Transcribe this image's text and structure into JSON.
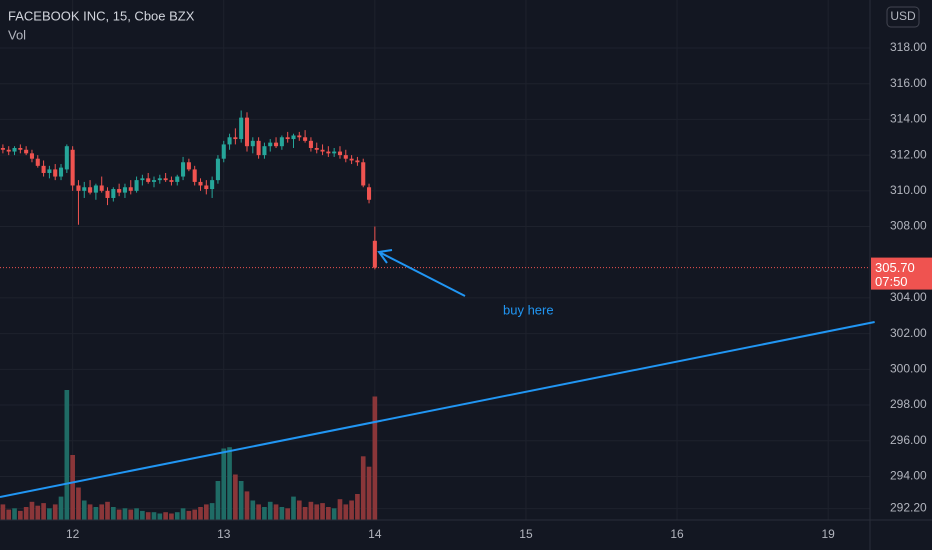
{
  "chart_data": {
    "type": "candlestick",
    "title": "FACEBOOK INC, 15, Cboe BZX",
    "subtitle": "Vol",
    "currency": "USD",
    "annotation": "buy here",
    "countdown": "07:50",
    "last_price": {
      "value": 305.7,
      "label": "305.70"
    },
    "up_color": "#26a69a",
    "down_color": "#ef5350",
    "volume_up_color": "#1f6b65",
    "volume_down_color": "#8a3639",
    "trendline": {
      "color": "#2196f3",
      "x": [
        -12.5,
        138
      ],
      "y": [
        292.85,
        302.65
      ]
    },
    "grid": true,
    "xlim": [
      -12.5,
      137.2
    ],
    "xticks": [
      {
        "value": 0,
        "label": "12"
      },
      {
        "value": 26,
        "label": "13"
      },
      {
        "value": 52,
        "label": "14"
      },
      {
        "value": 78,
        "label": "15"
      },
      {
        "value": 104,
        "label": "16"
      },
      {
        "value": 130,
        "label": "19"
      }
    ],
    "ylim": [
      291.56,
      320.69
    ],
    "yticks": [
      {
        "value": 292.2,
        "label": "292.20"
      },
      {
        "value": 294,
        "label": "294.00"
      },
      {
        "value": 296,
        "label": "296.00"
      },
      {
        "value": 298,
        "label": "298.00"
      },
      {
        "value": 300,
        "label": "300.00"
      },
      {
        "value": 302,
        "label": "302.00"
      },
      {
        "value": 304,
        "label": "304.00"
      },
      {
        "value": 308,
        "label": "308.00"
      },
      {
        "value": 310,
        "label": "310.00"
      },
      {
        "value": 312,
        "label": "312.00"
      },
      {
        "value": 314,
        "label": "314.00"
      },
      {
        "value": 316,
        "label": "316.00"
      },
      {
        "value": 318,
        "label": "318.00"
      }
    ],
    "volume_ylim": [
      0,
      400
    ],
    "x": [
      -12,
      -11,
      -10,
      -9,
      -8,
      -7,
      -6,
      -5,
      -4,
      -3,
      -2,
      -1,
      0,
      1,
      2,
      3,
      4,
      5,
      6,
      7,
      8,
      9,
      10,
      11,
      12,
      13,
      14,
      15,
      16,
      17,
      18,
      19,
      20,
      21,
      22,
      23,
      24,
      25,
      26,
      27,
      28,
      29,
      30,
      31,
      32,
      33,
      34,
      35,
      36,
      37,
      38,
      39,
      40,
      41,
      42,
      43,
      44,
      45,
      46,
      47,
      48,
      49,
      50,
      51,
      52
    ],
    "open": [
      312.4,
      312.3,
      312.2,
      312.4,
      312.3,
      312.1,
      311.8,
      311.4,
      311.0,
      311.2,
      310.8,
      311.2,
      312.3,
      310.3,
      310.0,
      310.2,
      309.9,
      310.3,
      310.0,
      309.6,
      310.1,
      309.9,
      310.2,
      310.0,
      310.6,
      310.7,
      310.5,
      310.6,
      310.7,
      310.6,
      310.5,
      310.8,
      311.6,
      311.2,
      310.5,
      310.3,
      310.1,
      310.6,
      311.8,
      312.6,
      313.0,
      312.9,
      314.1,
      312.5,
      312.8,
      312.0,
      312.5,
      312.7,
      312.5,
      313.0,
      312.9,
      313.1,
      313.0,
      312.8,
      312.4,
      312.3,
      312.2,
      312.1,
      312.2,
      312.0,
      311.8,
      311.7,
      311.6,
      310.2,
      307.2
    ],
    "high": [
      312.6,
      312.5,
      312.5,
      312.6,
      312.5,
      312.3,
      312.0,
      311.7,
      311.4,
      311.5,
      311.5,
      312.6,
      312.5,
      310.6,
      310.5,
      310.6,
      310.4,
      310.8,
      310.2,
      310.2,
      310.4,
      310.4,
      310.6,
      310.8,
      310.9,
      311.0,
      310.8,
      310.9,
      311.0,
      310.8,
      310.9,
      311.9,
      311.8,
      311.4,
      310.7,
      310.6,
      310.8,
      312.0,
      312.8,
      313.2,
      313.5,
      314.5,
      314.4,
      313.0,
      313.0,
      312.7,
      312.9,
      313.0,
      313.1,
      313.3,
      313.2,
      313.3,
      313.4,
      313.0,
      312.7,
      312.6,
      312.5,
      312.4,
      312.5,
      312.3,
      312.0,
      311.9,
      311.8,
      310.4,
      308.0
    ],
    "low": [
      312.1,
      312.0,
      312.0,
      312.1,
      312.0,
      311.6,
      311.3,
      310.8,
      310.7,
      310.6,
      310.6,
      311.0,
      310.0,
      308.1,
      309.6,
      309.8,
      309.5,
      309.9,
      309.2,
      309.4,
      309.7,
      309.6,
      309.8,
      309.9,
      310.3,
      310.4,
      310.2,
      310.4,
      310.5,
      310.3,
      310.3,
      310.6,
      311.1,
      310.3,
      310.0,
      309.8,
      309.6,
      310.4,
      311.6,
      312.3,
      312.6,
      312.7,
      312.2,
      312.1,
      311.8,
      311.8,
      312.2,
      312.4,
      312.3,
      312.7,
      312.4,
      312.8,
      312.7,
      312.2,
      312.1,
      312.0,
      311.9,
      311.9,
      311.8,
      311.6,
      311.5,
      311.4,
      310.2,
      309.3,
      305.6
    ],
    "close": [
      312.3,
      312.2,
      312.4,
      312.3,
      312.1,
      311.8,
      311.4,
      311.0,
      311.2,
      310.8,
      311.3,
      312.5,
      310.3,
      310.0,
      310.2,
      309.9,
      310.3,
      310.0,
      309.6,
      310.1,
      309.9,
      310.2,
      310.0,
      310.6,
      310.7,
      310.5,
      310.6,
      310.7,
      310.6,
      310.5,
      310.8,
      311.6,
      311.2,
      310.5,
      310.3,
      310.1,
      310.6,
      311.8,
      312.6,
      313.0,
      312.9,
      314.1,
      312.5,
      312.8,
      312.0,
      312.5,
      312.7,
      312.5,
      313.0,
      312.9,
      313.1,
      313.0,
      312.8,
      312.4,
      312.3,
      312.2,
      312.1,
      312.2,
      312.0,
      311.8,
      311.7,
      311.6,
      310.3,
      309.5,
      305.7
    ],
    "volume": [
      12,
      8,
      9,
      7,
      10,
      14,
      11,
      13,
      9,
      12,
      18,
      100,
      50,
      25,
      15,
      12,
      10,
      12,
      14,
      10,
      8,
      9,
      8,
      9,
      7,
      6,
      6,
      5,
      6,
      5,
      6,
      9,
      7,
      8,
      10,
      12,
      13,
      30,
      55,
      56,
      35,
      30,
      22,
      15,
      12,
      10,
      14,
      12,
      10,
      9,
      18,
      15,
      10,
      14,
      12,
      13,
      10,
      9,
      16,
      12,
      15,
      20,
      49,
      41,
      95
    ]
  }
}
